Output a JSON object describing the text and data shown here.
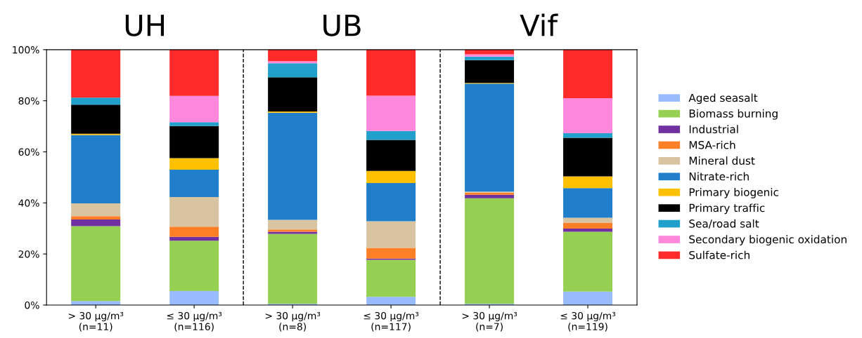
{
  "chart_data": {
    "type": "bar",
    "stacked": true,
    "categories": [
      "> 30 µg/m³\n(n=11)",
      "≤ 30 µg/m³\n(n=116)",
      "> 30 µg/m³\n(n=8)",
      "≤ 30 µg/m³\n(n=117)",
      "> 30 µg/m³\n(n=7)",
      "≤ 30 µg/m³\n(n=119)"
    ],
    "series": [
      {
        "name": "Aged seasalt",
        "color": "#99bbff",
        "values": [
          1.6,
          5.5,
          0.5,
          3.2,
          0.5,
          5.3
        ]
      },
      {
        "name": "Biomass burning",
        "color": "#95d052",
        "values": [
          29.3,
          19.7,
          27.4,
          14.5,
          41.3,
          23.4
        ]
      },
      {
        "name": "Industrial",
        "color": "#7030a0",
        "values": [
          2.6,
          1.5,
          0.8,
          0.5,
          1.4,
          1.2
        ]
      },
      {
        "name": "MSA-rich",
        "color": "#ff7f27",
        "values": [
          1.3,
          4.0,
          0.9,
          4.2,
          0.8,
          2.4
        ]
      },
      {
        "name": "Mineral dust",
        "color": "#d9c4a2",
        "values": [
          5.0,
          11.6,
          3.8,
          10.4,
          0.4,
          1.9
        ]
      },
      {
        "name": "Nitrate-rich",
        "color": "#217ecb",
        "values": [
          26.8,
          10.7,
          41.9,
          15.0,
          42.3,
          11.6
        ]
      },
      {
        "name": "Primary biogenic",
        "color": "#ffc000",
        "values": [
          0.5,
          4.5,
          0.5,
          4.7,
          0.3,
          4.6
        ]
      },
      {
        "name": "Primary traffic",
        "color": "#000000",
        "values": [
          11.4,
          12.6,
          13.4,
          12.2,
          8.9,
          15.1
        ]
      },
      {
        "name": "Sea/road salt",
        "color": "#21a0cc",
        "values": [
          2.7,
          1.5,
          5.5,
          3.5,
          1.4,
          1.8
        ]
      },
      {
        "name": "Secondary biogenic oxidation",
        "color": "#ff88dd",
        "values": [
          0,
          10.3,
          0.8,
          13.8,
          0.9,
          13.7
        ]
      },
      {
        "name": "Sulfate-rich",
        "color": "#ff2b2b",
        "values": [
          18.8,
          18.1,
          4.5,
          18.0,
          1.8,
          19.0
        ]
      }
    ],
    "ylim": [
      0,
      100
    ],
    "yticks": [
      {
        "value": 0,
        "label": "0%"
      },
      {
        "value": 20,
        "label": "20%"
      },
      {
        "value": 40,
        "label": "40%"
      },
      {
        "value": 60,
        "label": "60%"
      },
      {
        "value": 80,
        "label": "80%"
      },
      {
        "value": 100,
        "label": "100%"
      }
    ],
    "annotations": [
      "UH",
      "UB",
      "Vif"
    ],
    "legend": "right",
    "grid": false
  }
}
